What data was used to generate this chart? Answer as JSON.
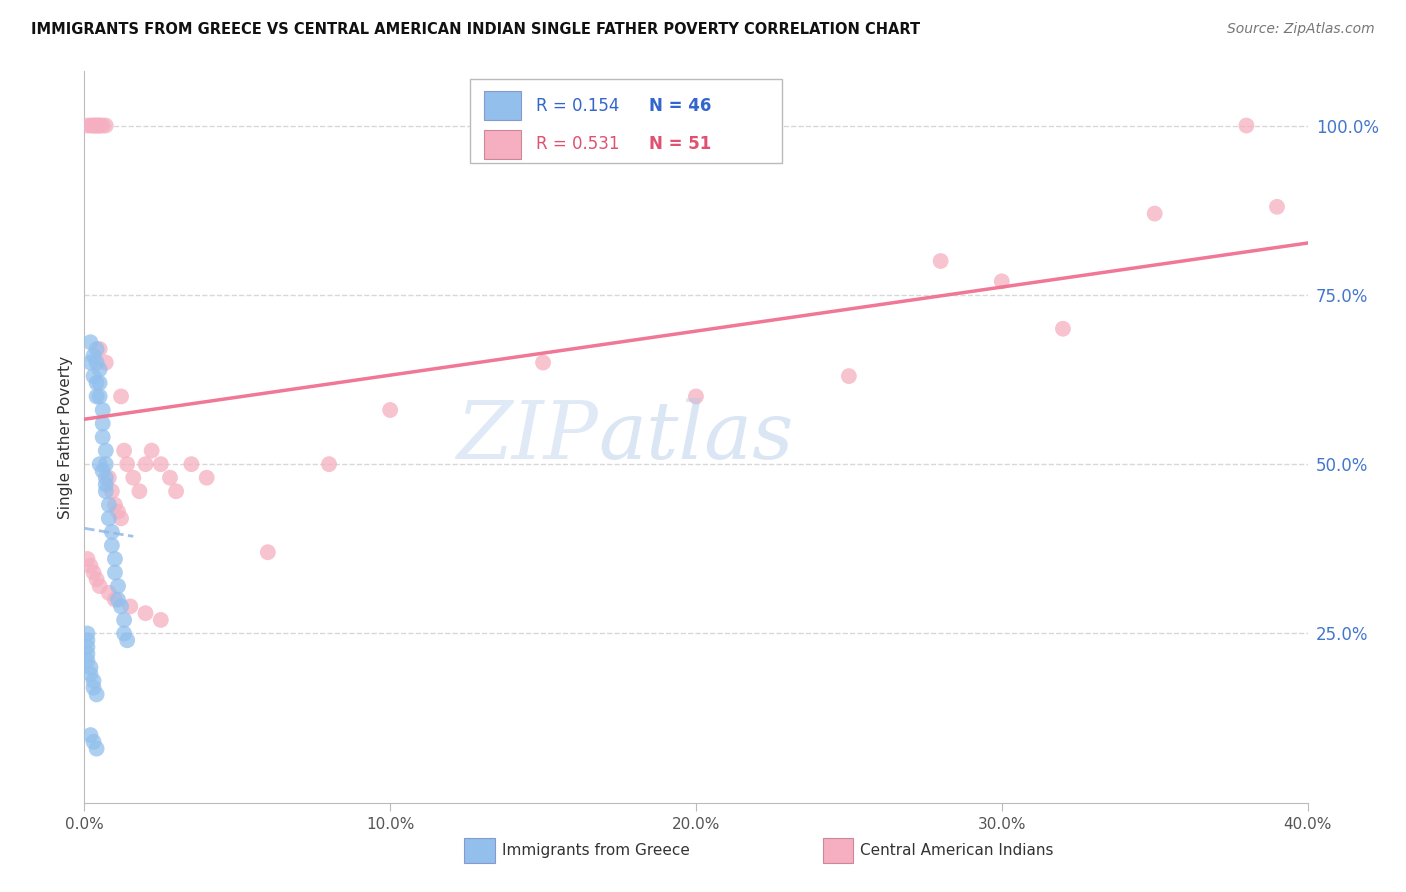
{
  "title": "IMMIGRANTS FROM GREECE VS CENTRAL AMERICAN INDIAN SINGLE FATHER POVERTY CORRELATION CHART",
  "source": "Source: ZipAtlas.com",
  "ylabel": "Single Father Poverty",
  "xlim": [
    0.0,
    0.4
  ],
  "ylim": [
    0.0,
    1.08
  ],
  "xticks": [
    0.0,
    0.1,
    0.2,
    0.3,
    0.4
  ],
  "xticklabels": [
    "0.0%",
    "10.0%",
    "20.0%",
    "30.0%",
    "40.0%"
  ],
  "yticks": [
    0.25,
    0.5,
    0.75,
    1.0
  ],
  "yticklabels": [
    "25.0%",
    "50.0%",
    "75.0%",
    "100.0%"
  ],
  "blue_color": "#92bfec",
  "pink_color": "#f5afc0",
  "blue_line_color": "#90b8e8",
  "pink_line_color": "#f07090",
  "background": "#ffffff",
  "grid_color": "#d8d8d8",
  "watermark_zip": "ZIP",
  "watermark_atlas": "atlas",
  "greece_x": [
    0.002,
    0.002,
    0.003,
    0.003,
    0.004,
    0.004,
    0.004,
    0.004,
    0.005,
    0.005,
    0.005,
    0.006,
    0.006,
    0.006,
    0.007,
    0.007,
    0.007,
    0.007,
    0.008,
    0.008,
    0.009,
    0.009,
    0.01,
    0.01,
    0.011,
    0.011,
    0.012,
    0.013,
    0.013,
    0.014,
    0.001,
    0.001,
    0.001,
    0.001,
    0.001,
    0.002,
    0.002,
    0.003,
    0.003,
    0.004,
    0.005,
    0.006,
    0.007,
    0.002,
    0.003,
    0.004
  ],
  "greece_y": [
    0.68,
    0.65,
    0.66,
    0.63,
    0.67,
    0.65,
    0.62,
    0.6,
    0.64,
    0.62,
    0.6,
    0.58,
    0.56,
    0.54,
    0.52,
    0.5,
    0.48,
    0.46,
    0.44,
    0.42,
    0.4,
    0.38,
    0.36,
    0.34,
    0.32,
    0.3,
    0.29,
    0.27,
    0.25,
    0.24,
    0.25,
    0.24,
    0.23,
    0.22,
    0.21,
    0.2,
    0.19,
    0.18,
    0.17,
    0.16,
    0.5,
    0.49,
    0.47,
    0.1,
    0.09,
    0.08
  ],
  "cai_x": [
    0.001,
    0.002,
    0.003,
    0.003,
    0.004,
    0.004,
    0.005,
    0.005,
    0.006,
    0.007,
    0.008,
    0.009,
    0.01,
    0.011,
    0.012,
    0.013,
    0.014,
    0.016,
    0.018,
    0.02,
    0.022,
    0.025,
    0.028,
    0.03,
    0.035,
    0.04,
    0.06,
    0.08,
    0.1,
    0.15,
    0.2,
    0.25,
    0.28,
    0.3,
    0.32,
    0.35,
    0.38,
    0.39,
    0.001,
    0.002,
    0.003,
    0.004,
    0.005,
    0.008,
    0.01,
    0.015,
    0.02,
    0.025,
    0.005,
    0.007,
    0.012
  ],
  "cai_y": [
    1.0,
    1.0,
    1.0,
    1.0,
    1.0,
    1.0,
    1.0,
    1.0,
    1.0,
    1.0,
    0.48,
    0.46,
    0.44,
    0.43,
    0.42,
    0.52,
    0.5,
    0.48,
    0.46,
    0.5,
    0.52,
    0.5,
    0.48,
    0.46,
    0.5,
    0.48,
    0.37,
    0.5,
    0.58,
    0.65,
    0.6,
    0.63,
    0.8,
    0.77,
    0.7,
    0.87,
    1.0,
    0.88,
    0.36,
    0.35,
    0.34,
    0.33,
    0.32,
    0.31,
    0.3,
    0.29,
    0.28,
    0.27,
    0.67,
    0.65,
    0.6
  ]
}
